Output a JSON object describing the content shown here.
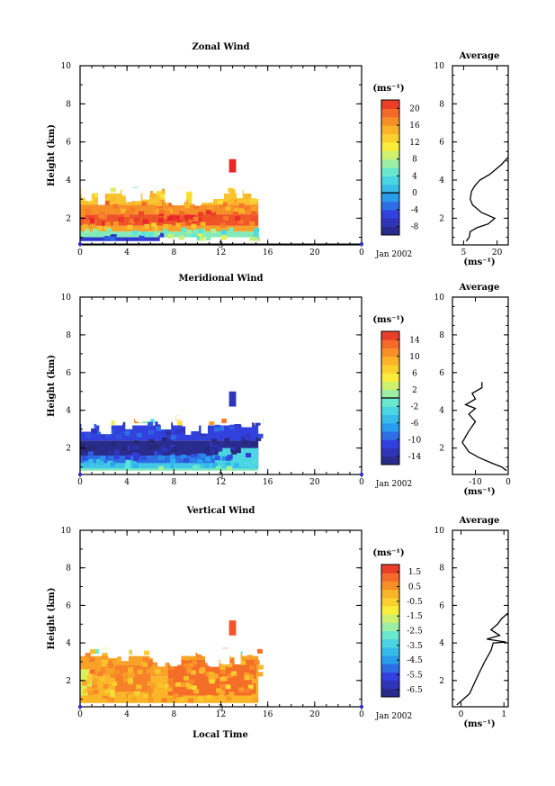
{
  "bottom_label": "Local Time",
  "chart_data": [
    {
      "type": "heatmap",
      "title": "Zonal Wind",
      "ylabel": "Height (km)",
      "xlim": [
        0,
        24
      ],
      "ylim": [
        0.6,
        10
      ],
      "x_ticks": [
        "0",
        "4",
        "8",
        "12",
        "16",
        "20",
        "0"
      ],
      "y_ticks": [
        "2",
        "4",
        "6",
        "8",
        "10"
      ],
      "date_marker": "3",
      "date_label": "Jan 2002",
      "colorbar": {
        "unit": "(ms⁻¹)",
        "ticks": [
          "-8",
          "-4",
          "0",
          "4",
          "8",
          "12",
          "16",
          "20"
        ],
        "range": [
          -10,
          22
        ],
        "contour": 0
      },
      "data_extent": {
        "x": [
          0,
          15.2
        ],
        "y": [
          0.8,
          3.4
        ]
      },
      "cells": [
        {
          "x": [
            0,
            15.2
          ],
          "y": [
            2.7,
            3.3
          ],
          "value": 14
        },
        {
          "x": [
            0,
            15.2
          ],
          "y": [
            2.2,
            2.7
          ],
          "value": 17
        },
        {
          "x": [
            0,
            15.2
          ],
          "y": [
            1.6,
            2.2
          ],
          "value": 20
        },
        {
          "x": [
            0,
            15.2
          ],
          "y": [
            1.3,
            1.6
          ],
          "value": 16
        },
        {
          "x": [
            0,
            15.2
          ],
          "y": [
            1.0,
            1.3
          ],
          "value": 6
        },
        {
          "x": [
            0,
            6.8
          ],
          "y": [
            0.8,
            1.0
          ],
          "value": -6
        },
        {
          "x": [
            7,
            11
          ],
          "y": [
            2.8,
            3.4
          ],
          "value": 12
        },
        {
          "x": [
            12.7,
            13.3
          ],
          "y": [
            4.4,
            5.1
          ],
          "value": 22
        }
      ],
      "average": {
        "title": "Average",
        "unit": "(ms⁻¹)",
        "x_ticks": [
          "5",
          "20"
        ],
        "xlim": [
          0,
          25
        ],
        "x": [
          6.2,
          7.5,
          8,
          11,
          16,
          19,
          13,
          9,
          8,
          8.5,
          10,
          12.3,
          16.7,
          21.8,
          25
        ],
        "y": [
          0.8,
          1.0,
          1.3,
          1.5,
          1.7,
          2.0,
          2.3,
          2.7,
          3.0,
          3.4,
          3.7,
          4.0,
          4.3,
          4.8,
          5.2
        ]
      }
    },
    {
      "type": "heatmap",
      "title": "Meridional Wind",
      "ylabel": "Height (km)",
      "xlim": [
        0,
        24
      ],
      "ylim": [
        0.6,
        10
      ],
      "x_ticks": [
        "0",
        "4",
        "8",
        "12",
        "16",
        "20",
        "0"
      ],
      "y_ticks": [
        "2",
        "4",
        "6",
        "8",
        "10"
      ],
      "date_marker": "3",
      "date_label": "Jan 2002",
      "colorbar": {
        "unit": "(ms⁻¹)",
        "ticks": [
          "-14",
          "-10",
          "-6",
          "-2",
          "2",
          "6",
          "10",
          "14"
        ],
        "range": [
          -16,
          16
        ],
        "contour": 0
      },
      "data_extent": {
        "x": [
          0,
          15.2
        ],
        "y": [
          0.8,
          3.5
        ]
      },
      "cells": [
        {
          "x": [
            0,
            15.2
          ],
          "y": [
            2.4,
            3.2
          ],
          "value": -11
        },
        {
          "x": [
            0,
            15.2
          ],
          "y": [
            1.6,
            2.4
          ],
          "value": -15
        },
        {
          "x": [
            0,
            15.2
          ],
          "y": [
            1.2,
            1.6
          ],
          "value": -9
        },
        {
          "x": [
            0,
            15.2
          ],
          "y": [
            0.9,
            1.2
          ],
          "value": -4
        },
        {
          "x": [
            0,
            15.2
          ],
          "y": [
            0.8,
            0.9
          ],
          "value": 0
        },
        {
          "x": [
            11.5,
            15.2
          ],
          "y": [
            1.0,
            2.0
          ],
          "value": -3
        },
        {
          "x": [
            12.7,
            13.3
          ],
          "y": [
            4.2,
            5.0
          ],
          "value": -13
        }
      ],
      "average": {
        "title": "Average",
        "unit": "(ms⁻¹)",
        "x_ticks": [
          "-10",
          "0"
        ],
        "xlim": [
          -17,
          0
        ],
        "x": [
          -0.5,
          -2,
          -5,
          -9,
          -12,
          -14,
          -12,
          -10,
          -12,
          -10,
          -13,
          -10,
          -11,
          -8,
          -8
        ],
        "y": [
          0.8,
          1.0,
          1.2,
          1.5,
          1.8,
          2.3,
          2.9,
          3.4,
          3.8,
          4.1,
          4.3,
          4.6,
          4.9,
          5.2,
          5.5
        ]
      }
    },
    {
      "type": "heatmap",
      "title": "Vertical Wind",
      "ylabel": "Height (km)",
      "xlim": [
        0,
        24
      ],
      "ylim": [
        0.6,
        10
      ],
      "x_ticks": [
        "0",
        "4",
        "8",
        "12",
        "16",
        "20",
        "0"
      ],
      "y_ticks": [
        "2",
        "4",
        "6",
        "8",
        "10"
      ],
      "date_marker": "3",
      "date_label": "Jan 2002",
      "colorbar": {
        "unit": "(ms⁻¹)",
        "ticks": [
          "-6.5",
          "-5.5",
          "-4.5",
          "-3.5",
          "-2.5",
          "-1.5",
          "-0.5",
          "0.5",
          "1.5"
        ],
        "range": [
          -7,
          2
        ],
        "contour": null
      },
      "data_extent": {
        "x": [
          0,
          15.2
        ],
        "y": [
          0.8,
          3.5
        ]
      },
      "cells": [
        {
          "x": [
            0,
            15.2
          ],
          "y": [
            2.2,
            3.3
          ],
          "value": 0.3
        },
        {
          "x": [
            0,
            15.2
          ],
          "y": [
            0.8,
            2.2
          ],
          "value": 0.0
        },
        {
          "x": [
            3,
            6
          ],
          "y": [
            1.4,
            2.8
          ],
          "value": 0.8
        },
        {
          "x": [
            7.5,
            15
          ],
          "y": [
            1.2,
            3.1
          ],
          "value": 1.1
        },
        {
          "x": [
            0,
            1
          ],
          "y": [
            1.2,
            2.6
          ],
          "value": -1.5
        },
        {
          "x": [
            12.7,
            13.3
          ],
          "y": [
            4.4,
            5.2
          ],
          "value": 1.4
        }
      ],
      "average": {
        "title": "Average",
        "unit": "(ms⁻¹)",
        "x_ticks": [
          "0",
          "1"
        ],
        "xlim": [
          -0.2,
          1.1
        ],
        "x": [
          -0.1,
          0.05,
          0.2,
          0.3,
          0.4,
          0.55,
          0.7,
          0.75,
          1.05,
          0.6,
          0.9,
          0.7,
          0.85,
          0.95,
          1.1
        ],
        "y": [
          0.7,
          1.0,
          1.3,
          1.8,
          2.3,
          3.0,
          3.6,
          4.0,
          4.05,
          4.2,
          4.4,
          4.7,
          5.0,
          5.3,
          5.6
        ]
      }
    }
  ]
}
